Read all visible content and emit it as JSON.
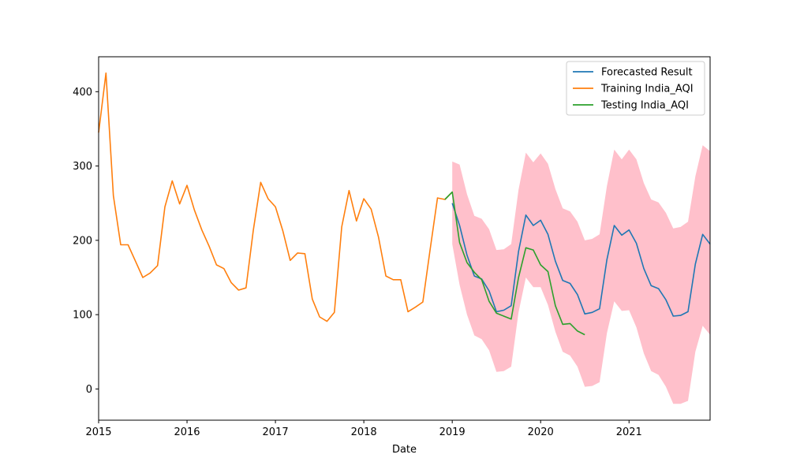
{
  "chart_data": {
    "type": "line",
    "title": "",
    "xlabel": "Date",
    "ylabel": "",
    "xlim": [
      2015.0,
      2021.917
    ],
    "ylim": [
      -42,
      447
    ],
    "x_ticks": [
      {
        "value": 2015,
        "label": "2015"
      },
      {
        "value": 2016,
        "label": "2016"
      },
      {
        "value": 2017,
        "label": "2017"
      },
      {
        "value": 2018,
        "label": "2018"
      },
      {
        "value": 2019,
        "label": "2019"
      },
      {
        "value": 2020,
        "label": "2020"
      },
      {
        "value": 2021,
        "label": "2021"
      }
    ],
    "y_ticks": [
      {
        "value": 0,
        "label": "0"
      },
      {
        "value": 100,
        "label": "100"
      },
      {
        "value": 200,
        "label": "200"
      },
      {
        "value": 300,
        "label": "300"
      },
      {
        "value": 400,
        "label": "400"
      }
    ],
    "grid": false,
    "legend_position": "top-right",
    "colors": {
      "forecast": "#1f77b4",
      "training": "#ff7f0e",
      "testing": "#2ca02c",
      "interval": "#ffc0cb"
    },
    "series": [
      {
        "name": "Forecasted Result",
        "color": "#1f77b4",
        "x": [
          2019.0,
          2019.083,
          2019.167,
          2019.25,
          2019.333,
          2019.417,
          2019.5,
          2019.583,
          2019.667,
          2019.75,
          2019.833,
          2019.917,
          2020.0,
          2020.083,
          2020.167,
          2020.25,
          2020.333,
          2020.417,
          2020.5,
          2020.583,
          2020.667,
          2020.75,
          2020.833,
          2020.917,
          2021.0,
          2021.083,
          2021.167,
          2021.25,
          2021.333,
          2021.417,
          2021.5,
          2021.583,
          2021.667,
          2021.75,
          2021.833,
          2021.917
        ],
        "values": [
          250,
          220,
          180,
          152,
          148,
          132,
          104,
          106,
          112,
          185,
          234,
          220,
          227,
          208,
          172,
          146,
          142,
          127,
          101,
          103,
          108,
          174,
          220,
          207,
          214,
          196,
          162,
          139,
          135,
          120,
          98,
          99,
          104,
          168,
          208,
          195
        ]
      },
      {
        "name": "Training India_AQI",
        "color": "#ff7f0e",
        "x": [
          2015.0,
          2015.083,
          2015.167,
          2015.25,
          2015.333,
          2015.417,
          2015.5,
          2015.583,
          2015.667,
          2015.75,
          2015.833,
          2015.917,
          2016.0,
          2016.083,
          2016.167,
          2016.25,
          2016.333,
          2016.417,
          2016.5,
          2016.583,
          2016.667,
          2016.75,
          2016.833,
          2016.917,
          2017.0,
          2017.083,
          2017.167,
          2017.25,
          2017.333,
          2017.417,
          2017.5,
          2017.583,
          2017.667,
          2017.75,
          2017.833,
          2017.917,
          2018.0,
          2018.083,
          2018.167,
          2018.25,
          2018.333,
          2018.417,
          2018.5,
          2018.583,
          2018.667,
          2018.75,
          2018.833,
          2018.917,
          2019.0
        ],
        "values": [
          345,
          425,
          260,
          194,
          194,
          172,
          150,
          156,
          166,
          245,
          280,
          249,
          274,
          241,
          214,
          192,
          167,
          162,
          143,
          133,
          136,
          214,
          278,
          256,
          245,
          213,
          173,
          183,
          182,
          121,
          97,
          91,
          103,
          218,
          267,
          226,
          256,
          242,
          204,
          152,
          147,
          147,
          104,
          110,
          117,
          188,
          257,
          255,
          265
        ]
      },
      {
        "name": "Testing India_AQI",
        "color": "#2ca02c",
        "x": [
          2018.917,
          2019.0,
          2019.083,
          2019.167,
          2019.25,
          2019.333,
          2019.417,
          2019.5,
          2019.583,
          2019.667,
          2019.75,
          2019.833,
          2019.917,
          2020.0,
          2020.083,
          2020.167,
          2020.25,
          2020.333,
          2020.417,
          2020.5
        ],
        "values": [
          255,
          265,
          197,
          170,
          157,
          147,
          118,
          102,
          98,
          94,
          150,
          190,
          187,
          167,
          158,
          112,
          87,
          88,
          78,
          73
        ]
      }
    ],
    "confidence_interval": {
      "x": [
        2019.0,
        2019.083,
        2019.167,
        2019.25,
        2019.333,
        2019.417,
        2019.5,
        2019.583,
        2019.667,
        2019.75,
        2019.833,
        2019.917,
        2020.0,
        2020.083,
        2020.167,
        2020.25,
        2020.333,
        2020.417,
        2020.5,
        2020.583,
        2020.667,
        2020.75,
        2020.833,
        2020.917,
        2021.0,
        2021.083,
        2021.167,
        2021.25,
        2021.333,
        2021.417,
        2021.5,
        2021.583,
        2021.667,
        2021.75,
        2021.833,
        2021.917
      ],
      "upper": [
        306,
        302,
        262,
        233,
        229,
        215,
        187,
        188,
        195,
        268,
        318,
        305,
        317,
        303,
        269,
        243,
        239,
        225,
        200,
        202,
        208,
        273,
        322,
        309,
        322,
        309,
        277,
        255,
        251,
        237,
        216,
        218,
        225,
        286,
        328,
        320
      ],
      "lower": [
        195,
        140,
        100,
        72,
        67,
        52,
        23,
        24,
        30,
        103,
        150,
        137,
        137,
        113,
        77,
        50,
        45,
        30,
        3,
        4,
        9,
        75,
        118,
        105,
        106,
        83,
        48,
        24,
        19,
        3,
        -20,
        -20,
        -16,
        50,
        85,
        73
      ]
    }
  }
}
